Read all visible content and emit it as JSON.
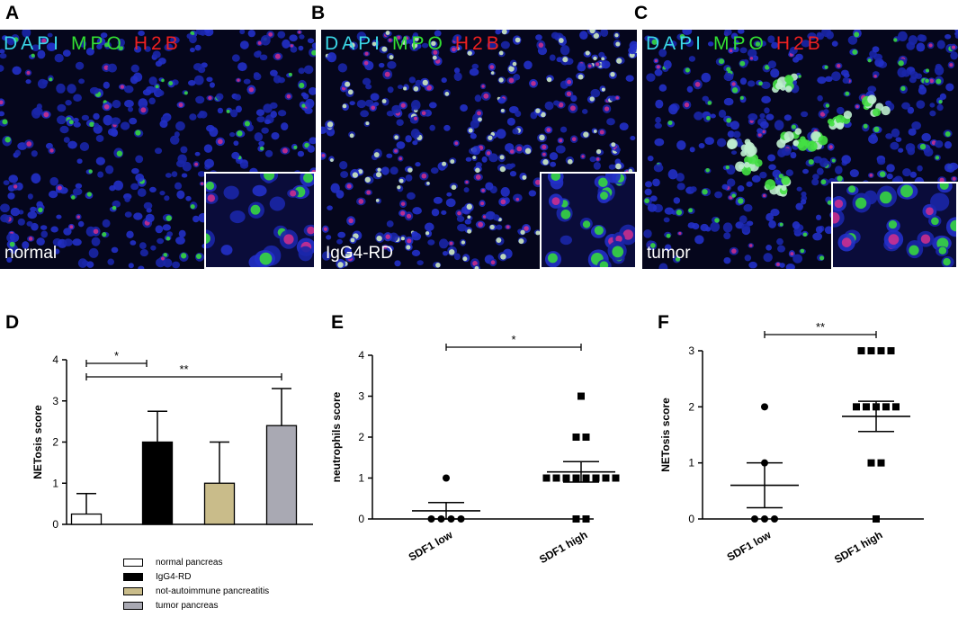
{
  "panels": {
    "A": {
      "letter": "A",
      "stain": [
        "DAPI",
        "MPO",
        "H2B"
      ],
      "condition": "normal"
    },
    "B": {
      "letter": "B",
      "stain": [
        "DAPI",
        "MPO",
        "H2B"
      ],
      "condition": "IgG4-RD"
    },
    "C": {
      "letter": "C",
      "stain": [
        "DAPI",
        "MPO",
        "H2B"
      ],
      "condition": "tumor"
    },
    "D": {
      "letter": "D"
    },
    "E": {
      "letter": "E"
    },
    "F": {
      "letter": "F"
    }
  },
  "colors": {
    "dapi": "#3ad6e6",
    "mpo": "#33e033",
    "h2b": "#ee2020"
  },
  "chart_data": [
    {
      "id": "D",
      "type": "bar",
      "ylabel": "NETosis score",
      "ylim": [
        0,
        4
      ],
      "yticks": [
        "0",
        "1",
        "2",
        "3",
        "4"
      ],
      "categories": [
        "normal pancreas",
        "IgG4-RD",
        "not-autoimmune pancreatitis",
        "tumor pancreas"
      ],
      "values": [
        0.25,
        2.0,
        1.0,
        2.4
      ],
      "errors": [
        0.5,
        0.75,
        1.0,
        0.9
      ],
      "bar_colors": [
        "#ffffff",
        "#000000",
        "#c9bc8a",
        "#a9a9b3"
      ],
      "significance": [
        {
          "from": 0,
          "to": 1,
          "label": "*"
        },
        {
          "from": 0,
          "to": 3,
          "label": "**"
        }
      ],
      "legend": [
        {
          "label": "normal pancreas",
          "color": "#ffffff"
        },
        {
          "label": "IgG4-RD",
          "color": "#000000"
        },
        {
          "label": "not-autoimmune pancreatitis",
          "color": "#c9bc8a"
        },
        {
          "label": "tumor pancreas",
          "color": "#a9a9b3"
        }
      ]
    },
    {
      "id": "E",
      "type": "scatter",
      "ylabel": "neutrophils score",
      "ylim": [
        0,
        4
      ],
      "yticks": [
        "0",
        "1",
        "2",
        "3",
        "4"
      ],
      "categories": [
        "SDF1 low",
        "SDF1 high"
      ],
      "series": [
        {
          "group": "SDF1 low",
          "marker": "circle",
          "values": [
            1,
            0,
            0,
            0,
            0
          ],
          "mean": 0.2,
          "sem": 0.2
        },
        {
          "group": "SDF1 high",
          "marker": "square",
          "values": [
            3,
            2,
            2,
            1,
            1,
            1,
            1,
            1,
            1,
            1,
            1,
            0,
            0
          ],
          "mean": 1.15,
          "sem": 0.25
        }
      ],
      "significance": [
        {
          "from": 0,
          "to": 1,
          "label": "*"
        }
      ]
    },
    {
      "id": "F",
      "type": "scatter",
      "ylabel": "NETosis score",
      "ylim": [
        0,
        3
      ],
      "yticks": [
        "0",
        "1",
        "2",
        "3"
      ],
      "categories": [
        "SDF1 low",
        "SDF1 high"
      ],
      "series": [
        {
          "group": "SDF1 low",
          "marker": "circle",
          "values": [
            2,
            1,
            0,
            0,
            0
          ],
          "mean": 0.6,
          "sem": 0.4
        },
        {
          "group": "SDF1 high",
          "marker": "square",
          "values": [
            3,
            3,
            3,
            3,
            2,
            2,
            2,
            2,
            2,
            1,
            1,
            0
          ],
          "mean": 1.83,
          "sem": 0.27
        }
      ],
      "significance": [
        {
          "from": 0,
          "to": 1,
          "label": "**"
        }
      ]
    }
  ]
}
